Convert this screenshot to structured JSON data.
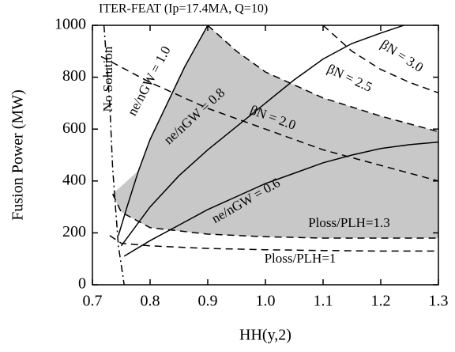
{
  "chart_data": {
    "type": "line",
    "title": "ITER-FEAT (Ip=17.4MA, Q=10)",
    "x_label": "HH(y,2)",
    "y_label": "Fusion Power (MW)",
    "xlim": [
      0.7,
      1.3
    ],
    "ylim": [
      0,
      1000
    ],
    "xticks": [
      {
        "value": 0.7,
        "label": "0.7"
      },
      {
        "value": 0.8,
        "label": "0.8"
      },
      {
        "value": 0.9,
        "label": "0.9"
      },
      {
        "value": 1.0,
        "label": "1.0"
      },
      {
        "value": 1.1,
        "label": "1.1"
      },
      {
        "value": 1.2,
        "label": "1.2"
      },
      {
        "value": 1.3,
        "label": "1.3"
      }
    ],
    "yticks": [
      0,
      200,
      400,
      600,
      800,
      1000
    ],
    "shaded_color": "#c8c8c8",
    "annotations": [
      "No Solution"
    ],
    "series": [
      {
        "name": "ne/nGW = 1.0",
        "color": "#000",
        "style": "solid",
        "x": [
          0.745,
          0.76,
          0.78,
          0.8,
          0.83,
          0.86,
          0.9
        ],
        "values": [
          190,
          300,
          440,
          560,
          700,
          840,
          1000
        ]
      },
      {
        "name": "ne/nGW = 0.8",
        "color": "#000",
        "style": "solid",
        "x": [
          0.75,
          0.8,
          0.85,
          0.9,
          0.95,
          1.0,
          1.05,
          1.1,
          1.15,
          1.2,
          1.24
        ],
        "values": [
          150,
          300,
          420,
          520,
          610,
          700,
          790,
          870,
          930,
          970,
          1000
        ]
      },
      {
        "name": "ne/nGW = 0.6",
        "color": "#000",
        "style": "solid",
        "x": [
          0.755,
          0.8,
          0.85,
          0.9,
          0.95,
          1.0,
          1.05,
          1.1,
          1.15,
          1.2,
          1.25,
          1.3
        ],
        "values": [
          110,
          170,
          230,
          290,
          340,
          390,
          430,
          470,
          500,
          525,
          540,
          550
        ]
      },
      {
        "name": "βN = 2.0",
        "color": "#000",
        "style": "dashed",
        "x": [
          0.715,
          0.8,
          0.9,
          1.0,
          1.1,
          1.2,
          1.3
        ],
        "values": [
          880,
          780,
          680,
          600,
          520,
          460,
          400
        ]
      },
      {
        "name": "βN = 2.5",
        "color": "#000",
        "style": "dashed",
        "x": [
          0.9,
          0.95,
          1.0,
          1.1,
          1.2,
          1.3
        ],
        "values": [
          1000,
          900,
          820,
          720,
          650,
          590
        ]
      },
      {
        "name": "βN = 3.0",
        "color": "#000",
        "style": "dashed",
        "x": [
          1.1,
          1.15,
          1.2,
          1.25,
          1.3
        ],
        "values": [
          1000,
          900,
          830,
          780,
          740
        ]
      },
      {
        "name": "Ploss/PLH=1.3",
        "color": "#000",
        "style": "dashed",
        "x": [
          0.735,
          0.75,
          0.8,
          0.9,
          1.0,
          1.1,
          1.2,
          1.3
        ],
        "values": [
          350,
          280,
          220,
          195,
          185,
          180,
          180,
          180
        ]
      },
      {
        "name": "Ploss/PLH=1",
        "color": "#000",
        "style": "dashed",
        "x": [
          0.73,
          0.75,
          0.8,
          0.9,
          1.0,
          1.1,
          1.2,
          1.3
        ],
        "values": [
          190,
          160,
          150,
          140,
          135,
          132,
          130,
          130
        ]
      },
      {
        "name": "No Solution",
        "color": "#000",
        "style": "dashdot",
        "x": [
          0.72,
          0.73,
          0.735,
          0.74,
          0.745,
          0.755
        ],
        "values": [
          1000,
          700,
          450,
          300,
          150,
          0
        ]
      }
    ]
  }
}
